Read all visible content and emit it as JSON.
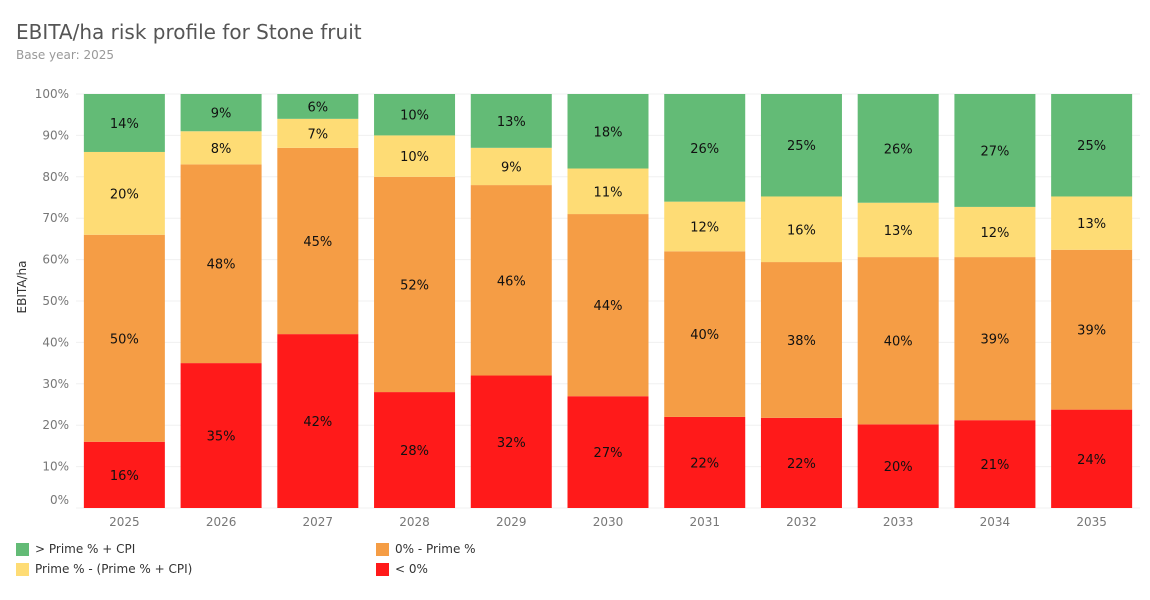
{
  "title": "EBITA/ha risk profile for Stone fruit",
  "subtitle": "Base year: 2025",
  "chart_data": {
    "type": "bar",
    "stacked": true,
    "title": "EBITA/ha risk profile for Stone fruit",
    "xlabel": "",
    "ylabel": "EBITA/ha",
    "ylim": [
      0,
      100
    ],
    "y_ticks": [
      "0%",
      "10%",
      "20%",
      "30%",
      "40%",
      "50%",
      "60%",
      "70%",
      "80%",
      "90%",
      "100%"
    ],
    "categories": [
      "2025",
      "2026",
      "2027",
      "2028",
      "2029",
      "2030",
      "2031",
      "2032",
      "2033",
      "2034",
      "2035"
    ],
    "series": [
      {
        "name": "< 0%",
        "color": "#ff1a1a",
        "values": [
          16,
          35,
          42,
          28,
          32,
          27,
          22,
          22,
          20,
          21,
          24
        ],
        "labels": [
          "16%",
          "35%",
          "42%",
          "28%",
          "32%",
          "27%",
          "22%",
          "22%",
          "20%",
          "21%",
          "24%"
        ]
      },
      {
        "name": "0% - Prime %",
        "color": "#f59d45",
        "values": [
          50,
          48,
          45,
          52,
          46,
          44,
          40,
          38,
          40,
          39,
          39
        ],
        "labels": [
          "50%",
          "48%",
          "45%",
          "52%",
          "46%",
          "44%",
          "40%",
          "38%",
          "40%",
          "39%",
          "39%"
        ]
      },
      {
        "name": "Prime % - (Prime % + CPI)",
        "color": "#fedc75",
        "values": [
          20,
          8,
          7,
          10,
          9,
          11,
          12,
          16,
          13,
          12,
          13
        ],
        "labels": [
          "20%",
          "8%",
          "7%",
          "10%",
          "9%",
          "11%",
          "12%",
          "16%",
          "13%",
          "12%",
          "13%"
        ]
      },
      {
        "name": "> Prime % + CPI",
        "color": "#63bb76",
        "values": [
          14,
          9,
          6,
          10,
          13,
          18,
          26,
          25,
          26,
          27,
          25
        ],
        "labels": [
          "14%",
          "9%",
          "6%",
          "10%",
          "13%",
          "18%",
          "26%",
          "25%",
          "26%",
          "27%",
          "25%"
        ]
      }
    ]
  },
  "legend": [
    {
      "label": "> Prime % + CPI",
      "color": "#63bb76"
    },
    {
      "label": "0% - Prime %",
      "color": "#f59d45"
    },
    {
      "label": "Prime % - (Prime % + CPI)",
      "color": "#fedc75"
    },
    {
      "label": "< 0%",
      "color": "#ff1a1a"
    }
  ]
}
